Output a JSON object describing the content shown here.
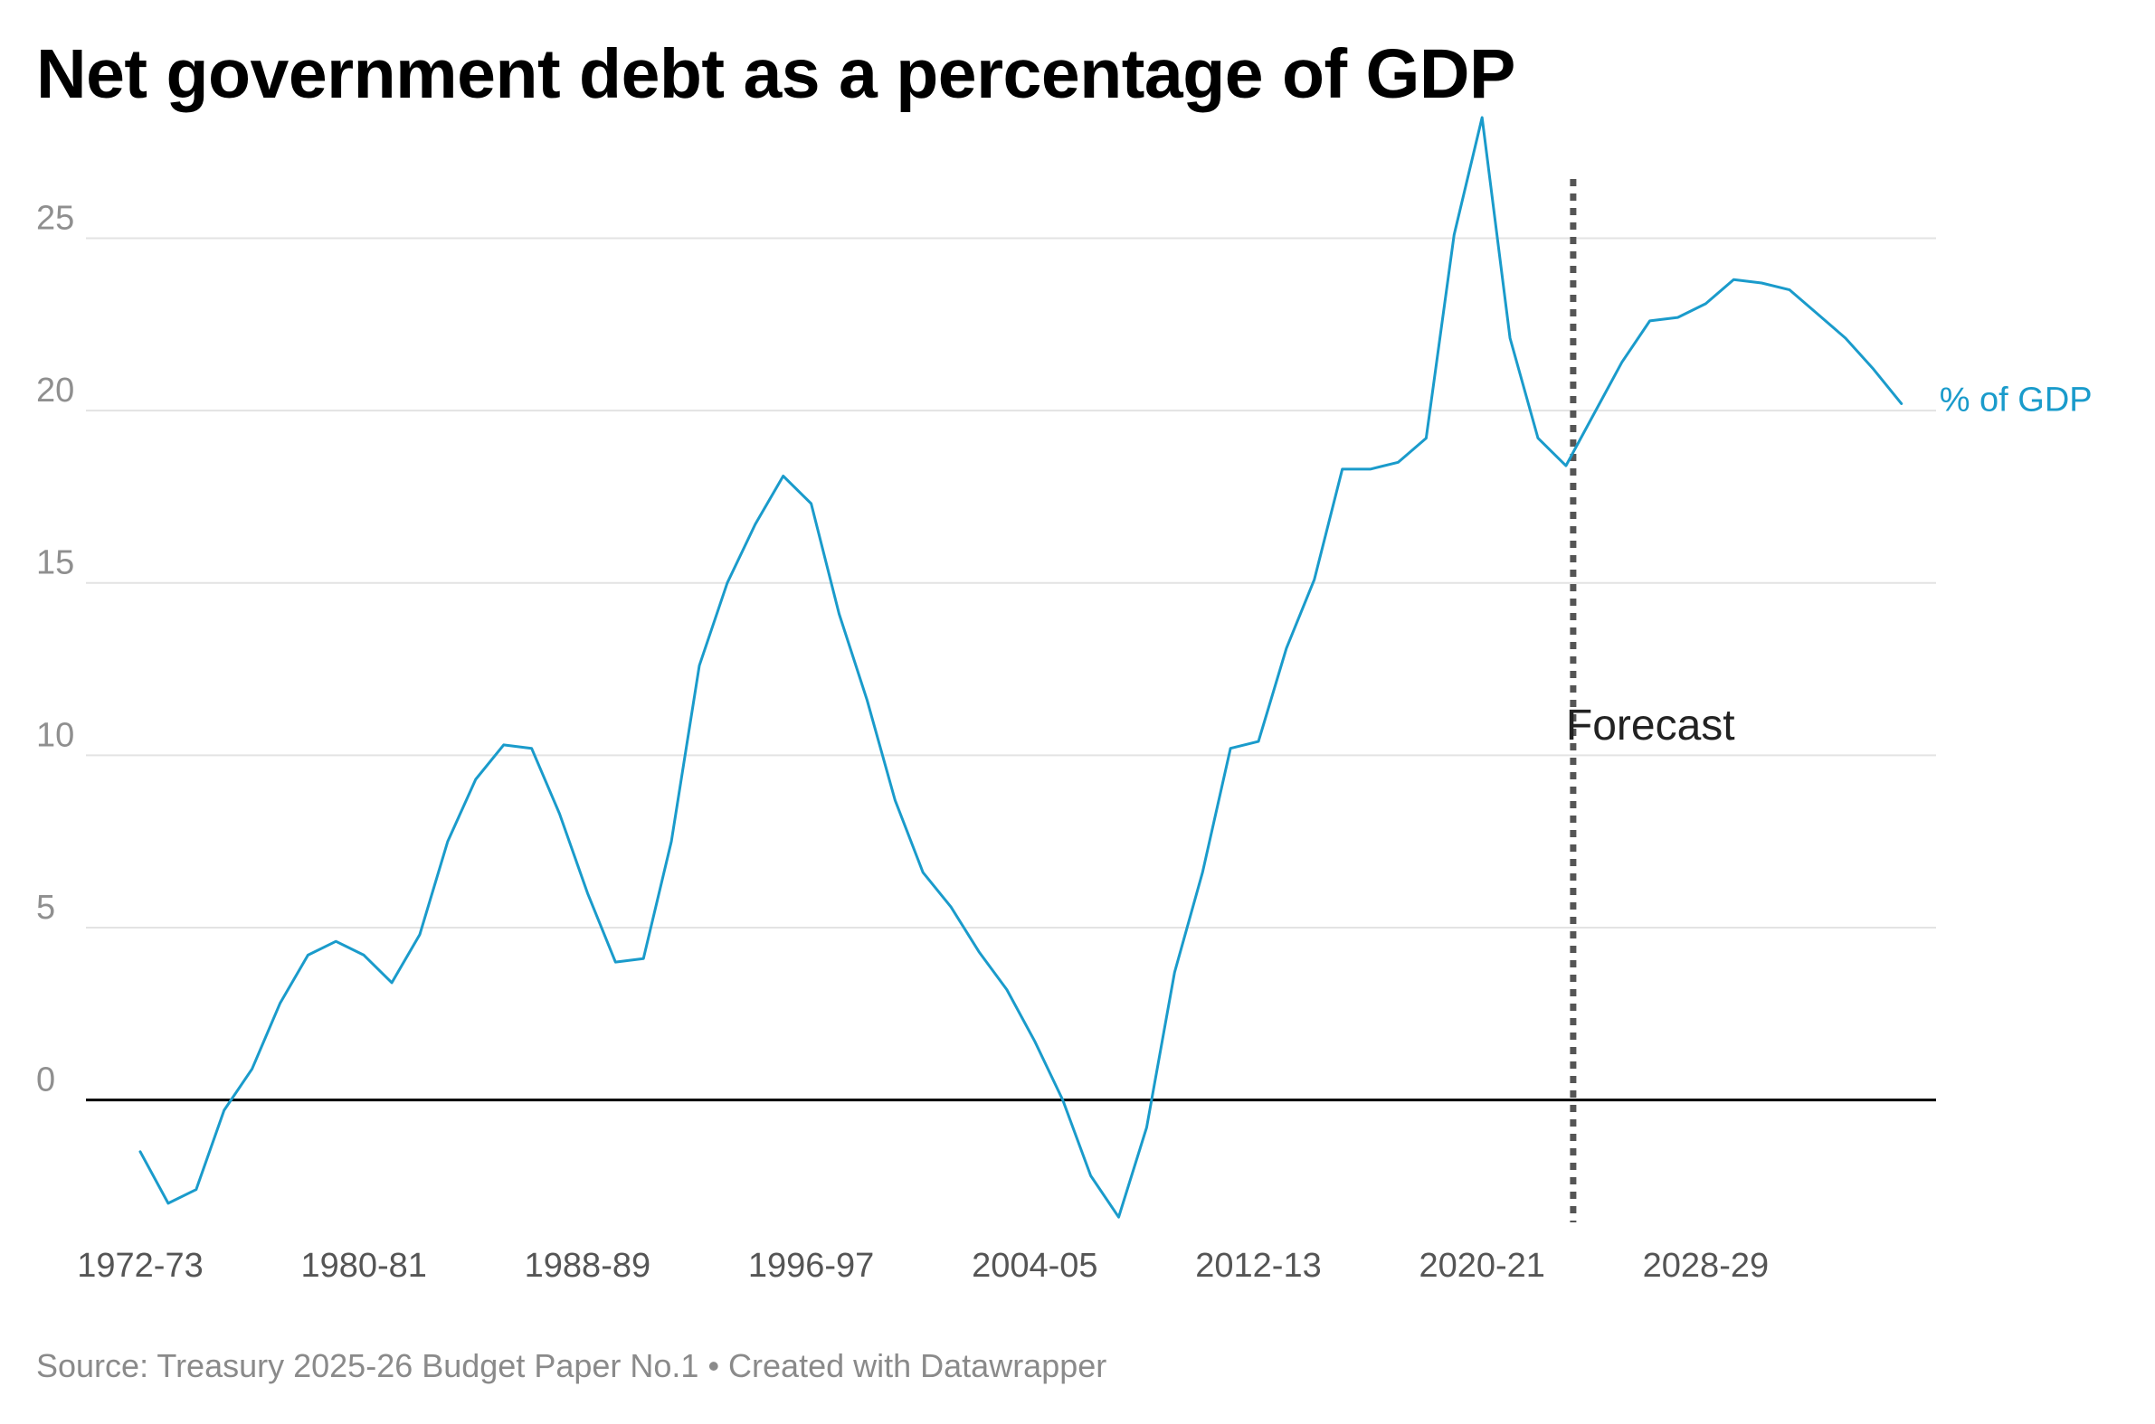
{
  "colors": {
    "line": "#1a9bcb",
    "grid": "#e3e3e3",
    "zero": "#000000",
    "forecast_line": "#555555"
  },
  "chart_data": {
    "type": "line",
    "title": "Net government debt as a percentage of GDP",
    "xlabel": "",
    "ylabel": "",
    "ylim": [
      -3.5,
      28.5
    ],
    "yticks": [
      0,
      5,
      10,
      15,
      20,
      25
    ],
    "ytick_labels": [
      "0",
      "5",
      "10",
      "15",
      "20",
      "25"
    ],
    "xtick_labels": [
      "1972-73",
      "1980-81",
      "1988-89",
      "1996-97",
      "2004-05",
      "2012-13",
      "2020-21",
      "2028-29"
    ],
    "grid": true,
    "series": [
      {
        "name": "% of GDP",
        "label": "% of GDP",
        "start_year": 1972,
        "values": [
          -1.5,
          -3.0,
          -2.6,
          -0.3,
          0.9,
          2.8,
          4.2,
          4.6,
          4.2,
          3.4,
          4.8,
          7.5,
          9.3,
          10.3,
          10.2,
          8.3,
          6.0,
          4.0,
          4.1,
          7.5,
          12.6,
          15.0,
          16.7,
          18.1,
          17.3,
          14.1,
          11.6,
          8.7,
          6.6,
          5.6,
          4.3,
          3.2,
          1.7,
          0.0,
          -2.2,
          -3.4,
          -0.8,
          3.7,
          6.6,
          10.2,
          10.4,
          13.1,
          15.1,
          18.3,
          18.3,
          18.5,
          19.2,
          25.1,
          28.5,
          22.1,
          19.2,
          18.4,
          19.9,
          21.4,
          22.6,
          22.7,
          23.1,
          23.8,
          23.7,
          23.5,
          22.8,
          22.1,
          21.2,
          20.2
        ]
      }
    ],
    "annotations": [
      {
        "text": "Forecast",
        "x_year": 2023
      }
    ],
    "source": "Source: Treasury 2025-26 Budget Paper No.1 • Created with Datawrapper"
  }
}
